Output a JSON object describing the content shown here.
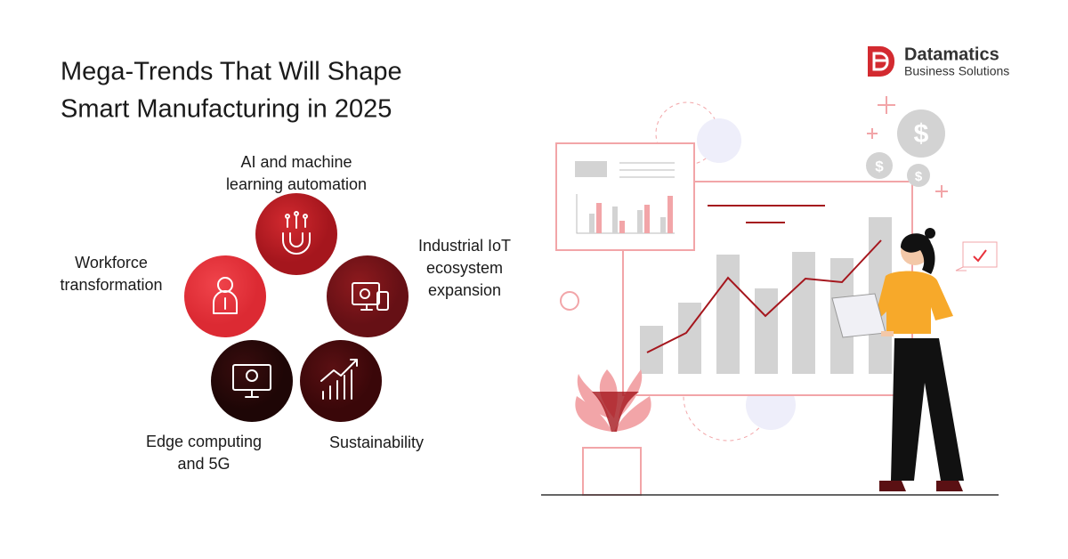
{
  "header": {
    "title_lines": [
      "Mega-Trends That Will Shape",
      "Smart Manufacturing in 2025"
    ]
  },
  "brand": {
    "name": "Datamatics",
    "tagline": "Business Solutions"
  },
  "trends": [
    {
      "lines": [
        "AI and machine",
        "learning automation"
      ]
    },
    {
      "lines": [
        "Industrial IoT",
        "ecosystem",
        "expansion"
      ]
    },
    {
      "lines": [
        "Sustainability"
      ]
    },
    {
      "lines": [
        "Edge computing",
        "and 5G"
      ]
    },
    {
      "lines": [
        "Workforce",
        "transformation"
      ]
    }
  ]
}
